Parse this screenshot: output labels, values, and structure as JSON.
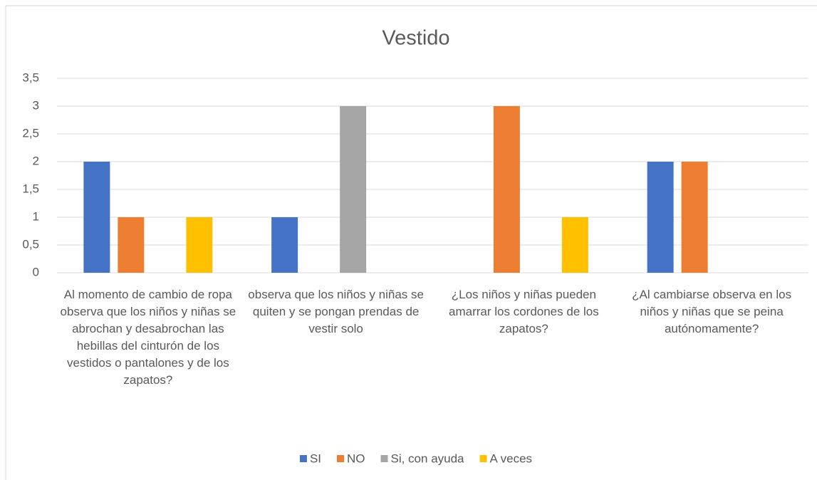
{
  "chart_data": {
    "type": "bar",
    "title": "Vestido",
    "categories": [
      "Al momento de cambio de ropa observa que los niños y niñas se abrochan y desabrochan las hebillas del cinturón de los vestidos o pantalones y de los zapatos?",
      "observa que los niños y niñas se quiten y se pongan prendas de vestir solo",
      "¿Los niños y niñas pueden amarrar los cordones de los zapatos?",
      "¿Al cambiarse observa en los niños y niñas que se peina autónomamente?"
    ],
    "series": [
      {
        "name": "SI",
        "color": "#4472c4",
        "values": [
          2,
          1,
          0,
          2
        ]
      },
      {
        "name": "NO",
        "color": "#ed7d31",
        "values": [
          1,
          0,
          3,
          2
        ]
      },
      {
        "name": "Si, con ayuda",
        "color": "#a5a5a5",
        "values": [
          0,
          3,
          0,
          0
        ]
      },
      {
        "name": "A  veces",
        "color": "#ffc000",
        "values": [
          1,
          0,
          1,
          0
        ]
      }
    ],
    "ylim": [
      0,
      3.5
    ],
    "yticks": [
      0,
      {
        "value": 0.5,
        "label": "0,5"
      },
      1,
      {
        "value": 1.5,
        "label": "1,5"
      },
      2,
      {
        "value": 2.5,
        "label": "2,5"
      },
      3,
      {
        "value": 3.5,
        "label": "3,5"
      }
    ],
    "grid": true,
    "legend": "bottom"
  }
}
